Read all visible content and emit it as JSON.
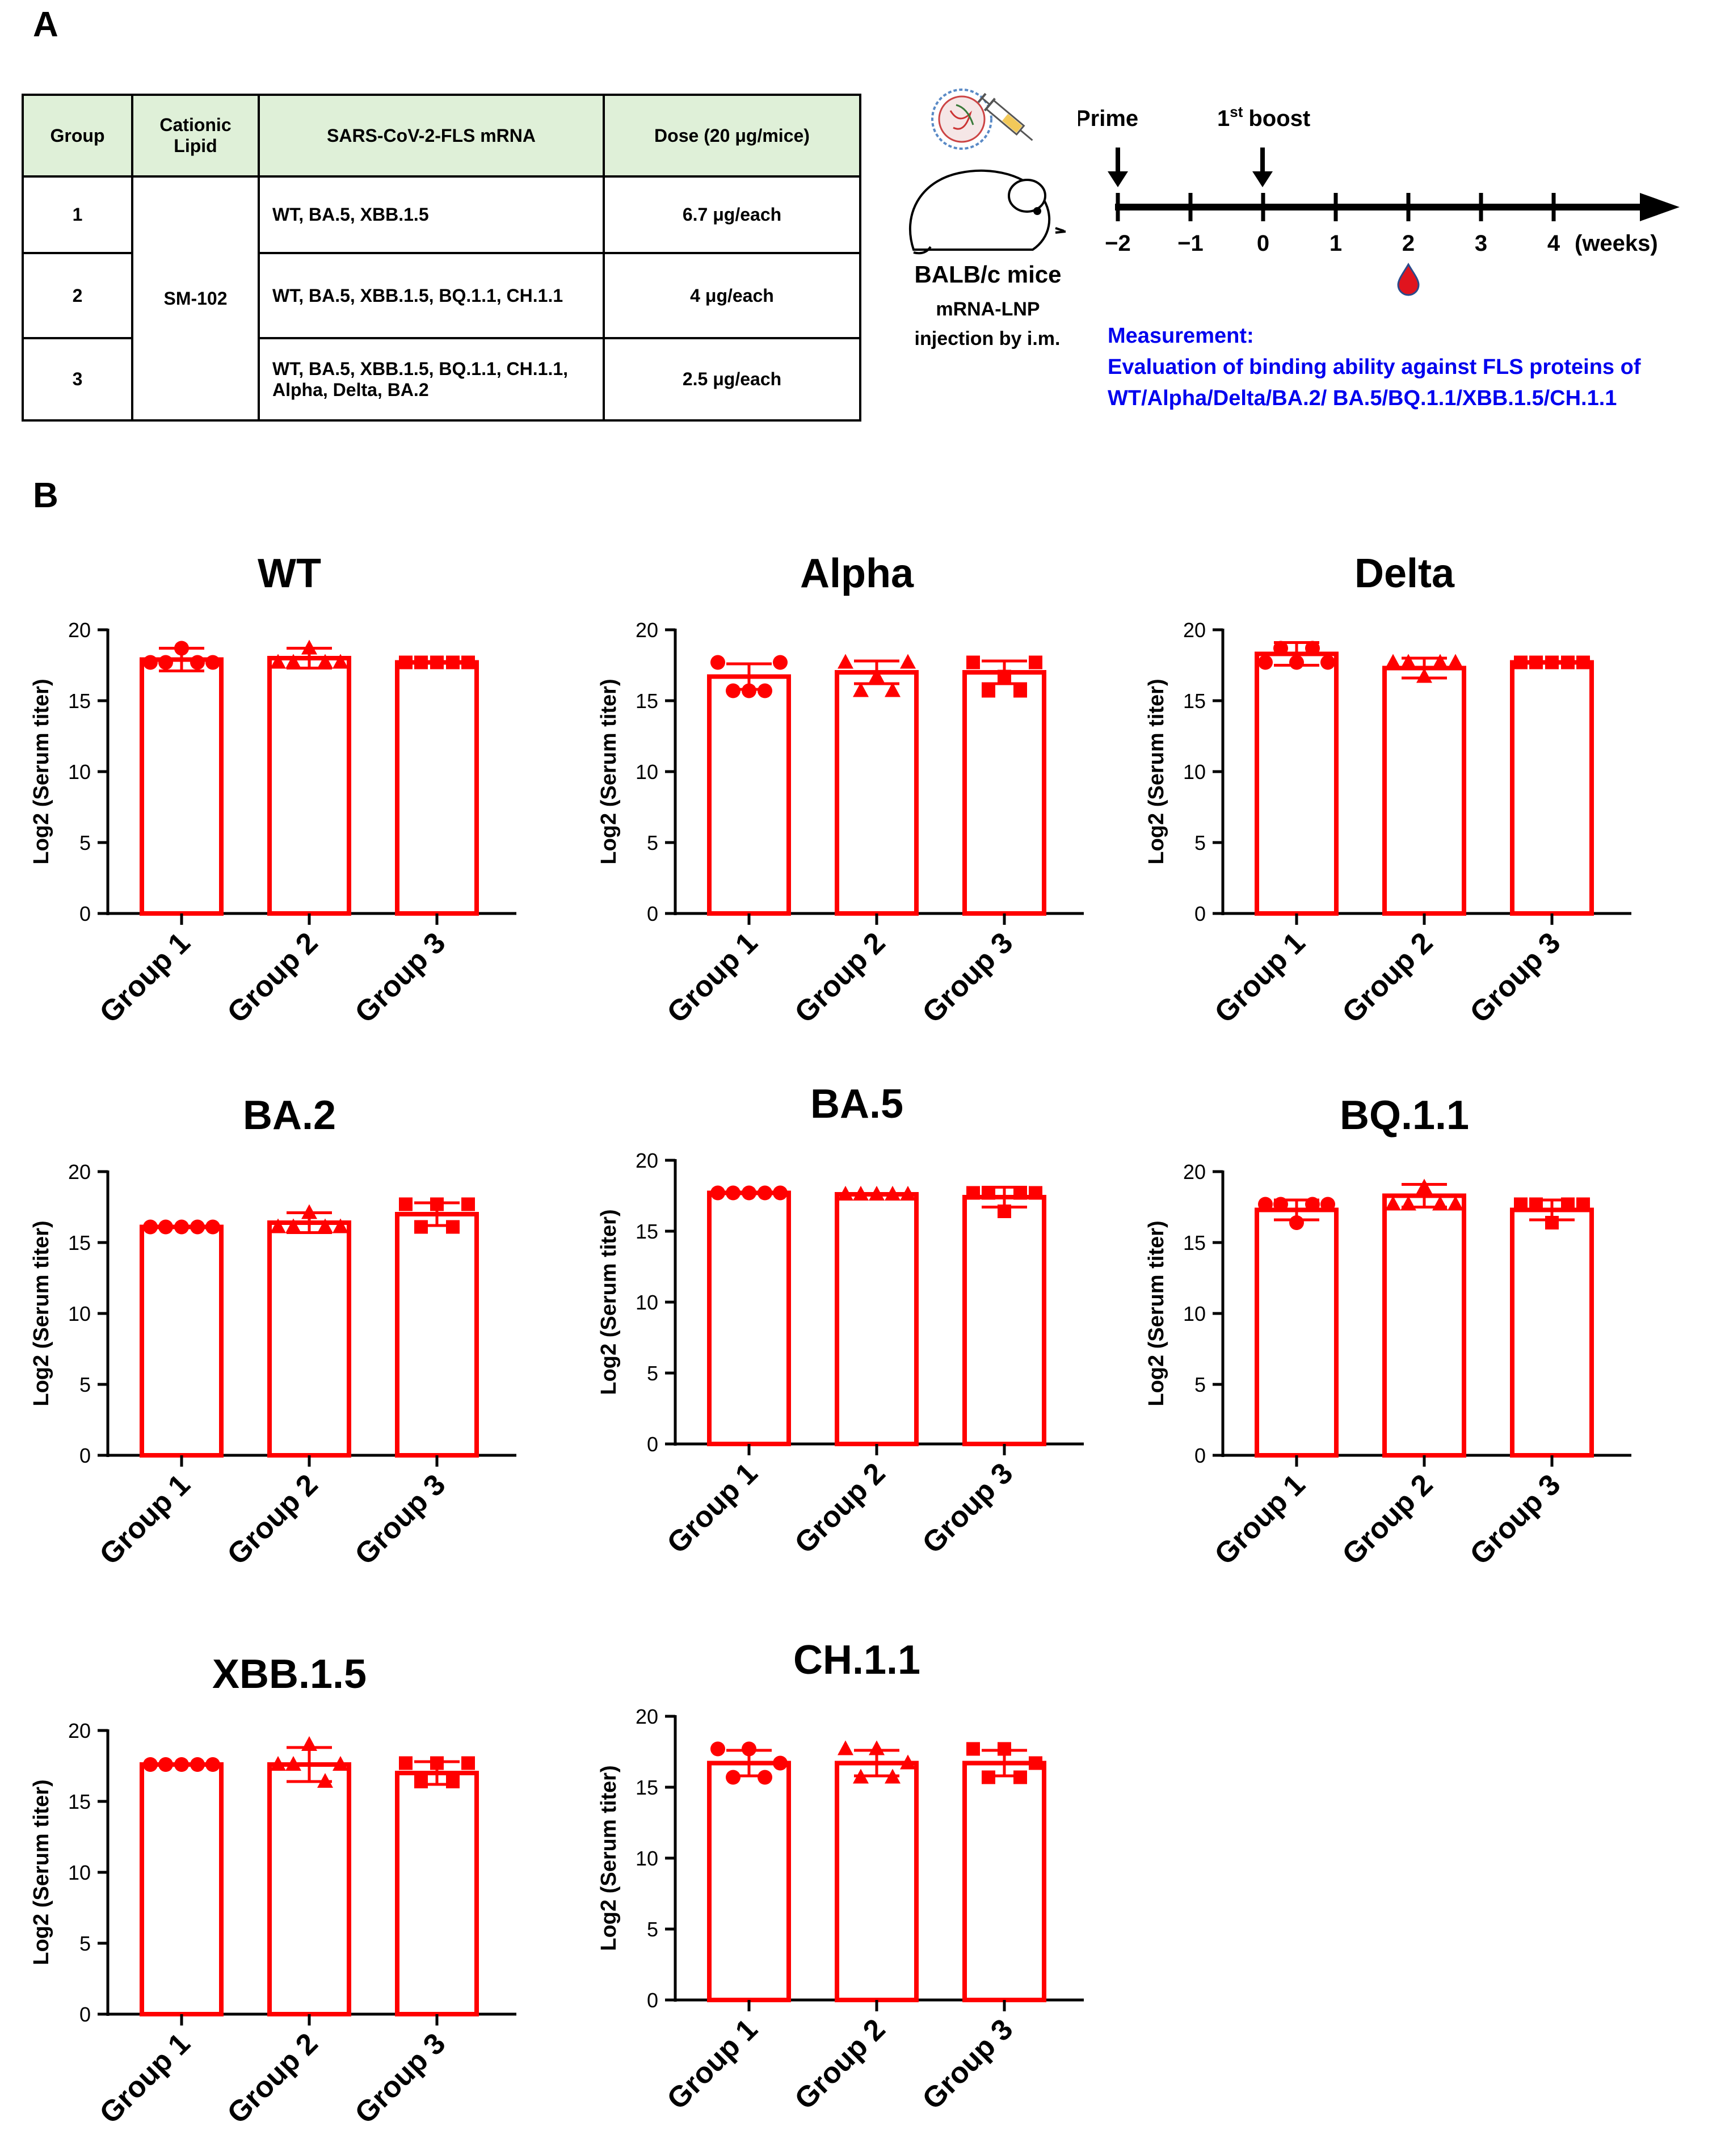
{
  "panel_a": {
    "letter": "A",
    "table": {
      "headers": [
        "Group",
        "Cationic Lipid",
        "SARS-CoV-2-FLS mRNA",
        "Dose (20 μg/mice)"
      ],
      "lipid": "SM-102",
      "rows": [
        {
          "group": "1",
          "mrna": "WT, BA.5, XBB.1.5",
          "dose": "6.7 μg/each"
        },
        {
          "group": "2",
          "mrna": "WT, BA.5, XBB.1.5, BQ.1.1, CH.1.1",
          "dose": "4 μg/each"
        },
        {
          "group": "3",
          "mrna": "WT, BA.5, XBB.1.5, BQ.1.1, CH.1.1, Alpha, Delta, BA.2",
          "dose": "2.5 μg/each"
        }
      ]
    },
    "mouse_label": "BALB/c mice",
    "injection_line1": "mRNA-LNP",
    "injection_line2": "injection by i.m.",
    "timeline": {
      "prime": "Prime",
      "boost": "1st boost",
      "boost_number": "1",
      "boost_suffix": "st",
      "boost_word": "boost",
      "ticks": [
        "−2",
        "−1",
        "0",
        "1",
        "2",
        "3",
        "4"
      ],
      "unit": "(weeks)",
      "blood_draw_week": 2,
      "drop_color": "#e0141e"
    },
    "measurement_title": "Measurement:",
    "measurement_line1": "Evaluation of binding ability against FLS proteins of",
    "measurement_line2": "WT/Alpha/Delta/BA.2/  BA.5/BQ.1.1/XBB.1.5/CH.1.1"
  },
  "panel_b": {
    "letter": "B"
  },
  "accent_color": "#ff0000",
  "chart_data": [
    {
      "type": "bar",
      "title": "WT",
      "ylabel": "Log2 (Serum titer)",
      "ylim": [
        0,
        20
      ],
      "yticks": [
        0,
        5,
        10,
        15,
        20
      ],
      "categories": [
        "Group 1",
        "Group 2",
        "Group 3"
      ],
      "values": [
        17.9,
        18.0,
        17.7
      ],
      "errors": [
        0.8,
        0.7,
        0.05
      ],
      "markers": [
        "circle",
        "triangle",
        "square"
      ],
      "points": [
        [
          17.7,
          17.7,
          18.7,
          17.7,
          17.7
        ],
        [
          17.7,
          17.7,
          18.7,
          17.7,
          17.7
        ],
        [
          17.7,
          17.7,
          17.7,
          17.7,
          17.7
        ]
      ]
    },
    {
      "type": "bar",
      "title": "Alpha",
      "ylabel": "Log2 (Serum titer)",
      "ylim": [
        0,
        20
      ],
      "yticks": [
        0,
        5,
        10,
        15,
        20
      ],
      "categories": [
        "Group 1",
        "Group 2",
        "Group 3"
      ],
      "values": [
        16.7,
        17.0,
        17.0
      ],
      "errors": [
        0.9,
        0.8,
        0.8
      ],
      "markers": [
        "circle",
        "triangle",
        "square"
      ],
      "points": [
        [
          17.7,
          15.7,
          15.7,
          15.7,
          17.7
        ],
        [
          17.7,
          15.7,
          16.7,
          15.7,
          17.7
        ],
        [
          17.7,
          15.7,
          16.7,
          15.7,
          17.7
        ]
      ]
    },
    {
      "type": "bar",
      "title": "Delta",
      "ylabel": "Log2 (Serum titer)",
      "ylim": [
        0,
        20
      ],
      "yticks": [
        0,
        5,
        10,
        15,
        20
      ],
      "categories": [
        "Group 1",
        "Group 2",
        "Group 3"
      ],
      "values": [
        18.3,
        17.3,
        17.7
      ],
      "errors": [
        0.8,
        0.7,
        0.05
      ],
      "markers": [
        "circle",
        "triangle",
        "square"
      ],
      "points": [
        [
          17.7,
          18.7,
          17.7,
          18.7,
          17.7
        ],
        [
          17.7,
          17.7,
          16.7,
          17.7,
          17.7
        ],
        [
          17.7,
          17.7,
          17.7,
          17.7,
          17.7
        ]
      ]
    },
    {
      "type": "bar",
      "title": "BA.2",
      "ylabel": "Log2 (Serum titer)",
      "ylim": [
        0,
        20
      ],
      "yticks": [
        0,
        5,
        10,
        15,
        20
      ],
      "categories": [
        "Group 1",
        "Group 2",
        "Group 3"
      ],
      "values": [
        16.1,
        16.4,
        17.0
      ],
      "errors": [
        0.05,
        0.7,
        0.8
      ],
      "markers": [
        "circle",
        "triangle",
        "square"
      ],
      "points": [
        [
          16.1,
          16.1,
          16.1,
          16.1,
          16.1
        ],
        [
          16.1,
          16.1,
          17.1,
          16.1,
          16.1
        ],
        [
          17.7,
          16.1,
          17.7,
          16.1,
          17.7
        ]
      ]
    },
    {
      "type": "bar",
      "title": "BA.5",
      "ylabel": "Log2 (Serum titer)",
      "ylim": [
        0,
        20
      ],
      "yticks": [
        0,
        5,
        10,
        15,
        20
      ],
      "categories": [
        "Group 1",
        "Group 2",
        "Group 3"
      ],
      "values": [
        17.7,
        17.6,
        17.4
      ],
      "errors": [
        0.05,
        0.05,
        0.7
      ],
      "markers": [
        "circle",
        "triangle",
        "square"
      ],
      "points": [
        [
          17.7,
          17.7,
          17.7,
          17.7,
          17.7
        ],
        [
          17.6,
          17.6,
          17.6,
          17.6,
          17.6
        ],
        [
          17.7,
          17.7,
          16.4,
          17.7,
          17.7
        ]
      ]
    },
    {
      "type": "bar",
      "title": "BQ.1.1",
      "ylabel": "Log2 (Serum titer)",
      "ylim": [
        0,
        20
      ],
      "yticks": [
        0,
        5,
        10,
        15,
        20
      ],
      "categories": [
        "Group 1",
        "Group 2",
        "Group 3"
      ],
      "values": [
        17.3,
        18.3,
        17.3
      ],
      "errors": [
        0.7,
        0.8,
        0.7
      ],
      "markers": [
        "circle",
        "triangle",
        "square"
      ],
      "points": [
        [
          17.7,
          17.7,
          16.4,
          17.7,
          17.7
        ],
        [
          17.7,
          17.7,
          18.9,
          17.7,
          17.7
        ],
        [
          17.7,
          17.7,
          16.4,
          17.7,
          17.7
        ]
      ]
    },
    {
      "type": "bar",
      "title": "XBB.1.5",
      "ylabel": "Log2 (Serum titer)",
      "ylim": [
        0,
        20
      ],
      "yticks": [
        0,
        5,
        10,
        15,
        20
      ],
      "categories": [
        "Group 1",
        "Group 2",
        "Group 3"
      ],
      "values": [
        17.6,
        17.6,
        17.0
      ],
      "errors": [
        0.05,
        1.2,
        0.8
      ],
      "markers": [
        "circle",
        "triangle",
        "square"
      ],
      "points": [
        [
          17.6,
          17.6,
          17.6,
          17.6,
          17.6
        ],
        [
          17.6,
          17.6,
          19.0,
          16.4,
          17.6
        ],
        [
          17.7,
          16.4,
          17.7,
          16.4,
          17.7
        ]
      ]
    },
    {
      "type": "bar",
      "title": "CH.1.1",
      "ylabel": "Log2 (Serum titer)",
      "ylim": [
        0,
        20
      ],
      "yticks": [
        0,
        5,
        10,
        15,
        20
      ],
      "categories": [
        "Group 1",
        "Group 2",
        "Group 3"
      ],
      "values": [
        16.7,
        16.7,
        16.7
      ],
      "errors": [
        0.9,
        0.9,
        0.9
      ],
      "markers": [
        "circle",
        "triangle",
        "square"
      ],
      "points": [
        [
          17.7,
          15.7,
          17.7,
          15.7,
          16.7
        ],
        [
          17.7,
          15.7,
          17.7,
          15.7,
          16.7
        ],
        [
          17.7,
          15.7,
          17.7,
          15.7,
          16.7
        ]
      ]
    }
  ]
}
